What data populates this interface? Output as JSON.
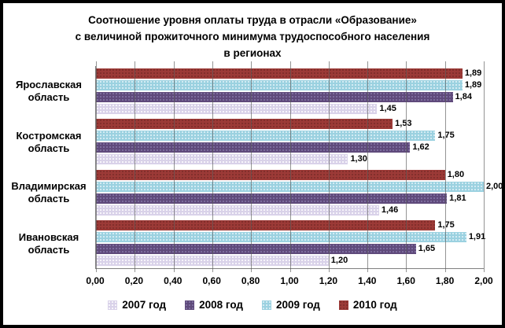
{
  "title": {
    "line1": "Соотношение уровня оплаты труда  в отрасли «Образование»",
    "line2": "с величиной прожиточного минимума трудоспособного населения",
    "line3": "в регионах"
  },
  "chart_data": {
    "type": "bar",
    "orientation": "horizontal",
    "title": "Соотношение уровня оплаты труда в отрасли «Образование» с величиной прожиточного минимума трудоспособного населения в регионах",
    "categories": [
      "Ярославская область",
      "Костромская область",
      "Владимирская область",
      "Ивановская область"
    ],
    "series": [
      {
        "name": "2007 год",
        "color": "#D9D2E9",
        "dot_color": "#FFFFFF",
        "values": [
          1.45,
          1.3,
          1.46,
          1.2
        ]
      },
      {
        "name": "2008 год",
        "color": "#5F4A7B",
        "dot_color": "#8578A8",
        "values": [
          1.84,
          1.62,
          1.81,
          1.65
        ]
      },
      {
        "name": "2009 год",
        "color": "#9BD1E0",
        "dot_color": "#E6F4F9",
        "values": [
          1.89,
          1.75,
          2.0,
          1.91
        ]
      },
      {
        "name": "2010 год",
        "color": "#9C3A37",
        "dot_color": "#7A2B28",
        "values": [
          1.89,
          1.53,
          1.8,
          1.75
        ]
      }
    ],
    "bar_order_top_to_bottom": [
      "2010 год",
      "2009 год",
      "2008 год",
      "2007 год"
    ],
    "xlim": [
      0,
      2
    ],
    "xtick_labels": [
      "0,00",
      "0,20",
      "0,40",
      "0,60",
      "0,80",
      "1,00",
      "1,20",
      "1,40",
      "1,60",
      "1,80",
      "2,00"
    ],
    "decimal_separator": ",",
    "value_decimals": 2,
    "gridlines": "vertical",
    "legend_position": "bottom",
    "axis_color": "#808080",
    "text_color": "#000000"
  }
}
